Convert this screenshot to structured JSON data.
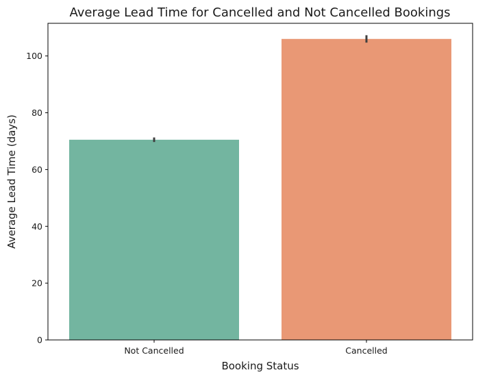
{
  "chart_data": {
    "type": "bar",
    "title": "Average Lead Time for Cancelled and Not Cancelled Bookings",
    "xlabel": "Booking Status",
    "ylabel": "Average Lead Time (days)",
    "categories": [
      "Not Cancelled",
      "Cancelled"
    ],
    "values": [
      70.5,
      106.0
    ],
    "error_bars": [
      [
        69.7,
        71.3
      ],
      [
        104.7,
        107.3
      ]
    ],
    "colors": [
      "#73b5a0",
      "#e99875"
    ],
    "ylim": [
      0,
      111.5
    ],
    "yticks": [
      0,
      20,
      40,
      60,
      80,
      100
    ],
    "grid": false,
    "legend": "none"
  }
}
